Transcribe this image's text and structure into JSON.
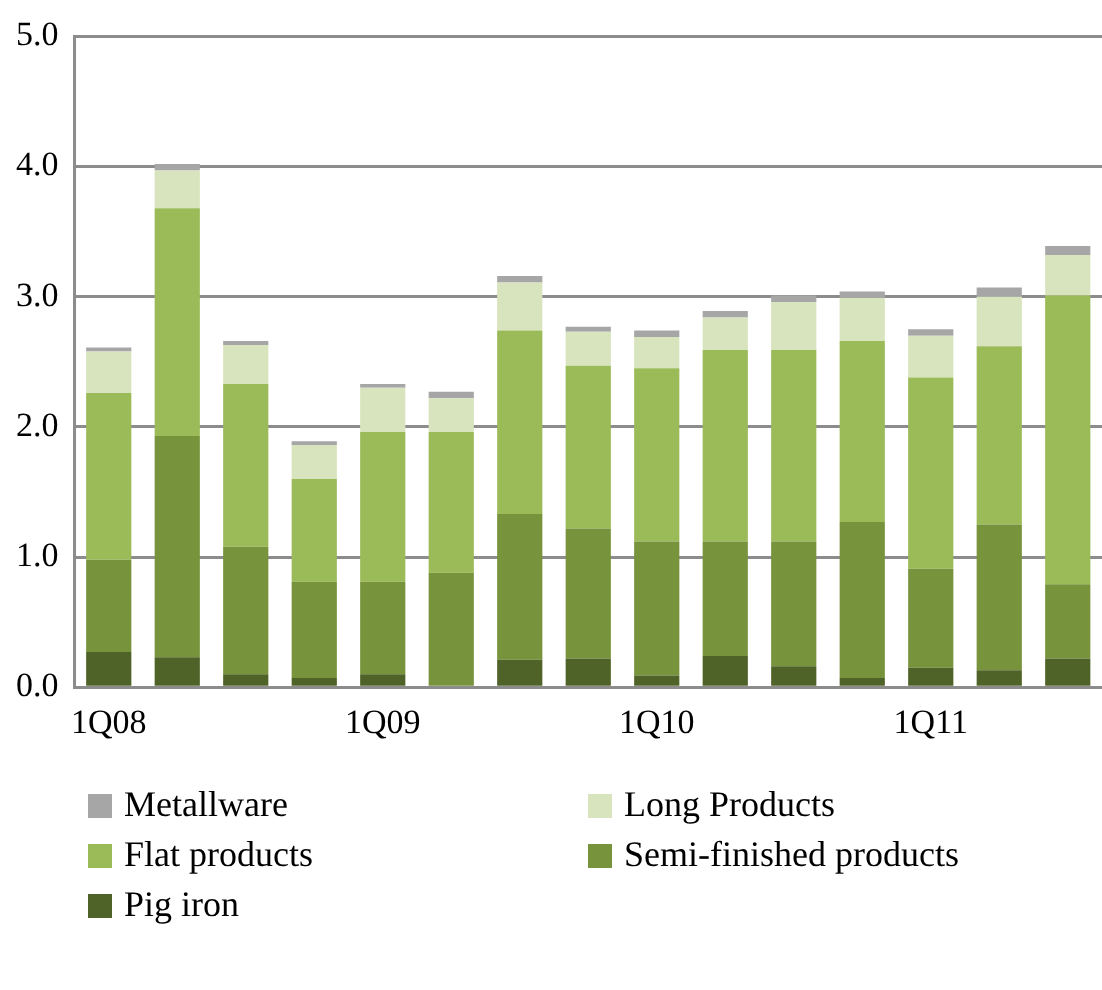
{
  "chart_data": {
    "type": "bar",
    "stacked": true,
    "categories": [
      "1Q08",
      null,
      null,
      null,
      "1Q09",
      null,
      null,
      null,
      "1Q10",
      null,
      null,
      null,
      "1Q11",
      null,
      null
    ],
    "series": [
      {
        "name": "Pig iron",
        "color": "#4f6228",
        "values": [
          0.27,
          0.23,
          0.1,
          0.07,
          0.1,
          null,
          0.21,
          0.22,
          0.09,
          0.24,
          0.16,
          0.07,
          0.15,
          0.13,
          0.22
        ]
      },
      {
        "name": "Semi-finished products",
        "color": "#77933c",
        "values": [
          0.71,
          1.7,
          0.98,
          0.74,
          0.71,
          0.88,
          1.12,
          1.0,
          1.03,
          0.88,
          0.96,
          1.2,
          0.76,
          1.12,
          0.57
        ]
      },
      {
        "name": "Flat products",
        "color": "#9bbb59",
        "values": [
          1.28,
          1.75,
          1.25,
          0.79,
          1.15,
          1.08,
          1.41,
          1.25,
          1.33,
          1.47,
          1.47,
          1.39,
          1.47,
          1.37,
          2.22
        ]
      },
      {
        "name": "Long Products",
        "color": "#d7e4bd",
        "values": [
          0.32,
          0.29,
          0.3,
          0.26,
          0.34,
          0.26,
          0.37,
          0.26,
          0.24,
          0.25,
          0.37,
          0.33,
          0.32,
          0.38,
          0.31
        ]
      },
      {
        "name": "Metallware",
        "color": "#a6a6a6",
        "values": [
          0.03,
          0.05,
          0.03,
          0.03,
          0.03,
          0.05,
          0.05,
          0.04,
          0.05,
          0.05,
          0.05,
          0.05,
          0.05,
          0.07,
          0.07
        ]
      }
    ],
    "ylim": [
      0,
      5
    ],
    "yticks": [
      {
        "value": 0,
        "label": "0.0"
      },
      {
        "value": 1,
        "label": "1.0"
      },
      {
        "value": 2,
        "label": "2.0"
      },
      {
        "value": 3,
        "label": "3.0"
      },
      {
        "value": 4,
        "label": "4.0"
      },
      {
        "value": 5,
        "label": "5.0"
      }
    ],
    "grid": "y",
    "legend": "bottom"
  }
}
